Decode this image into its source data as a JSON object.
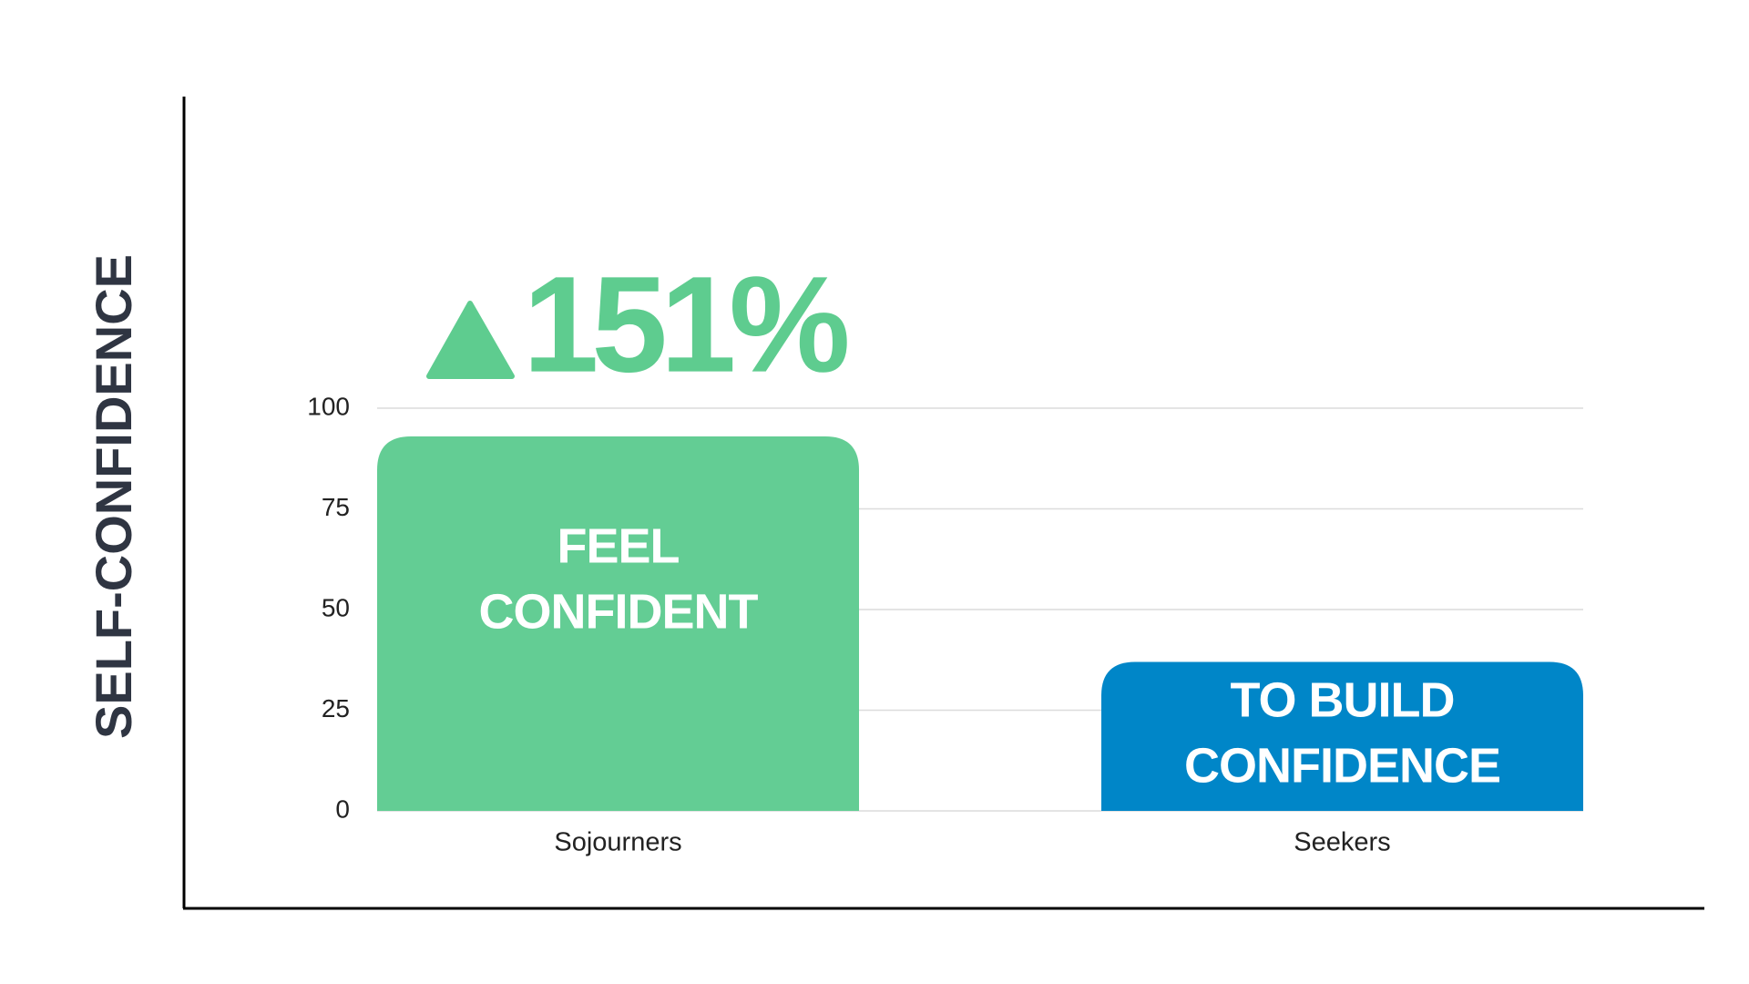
{
  "chart_data": {
    "type": "bar",
    "y_label": "SELF-CONFIDENCE",
    "categories": [
      "Sojourners",
      "Seekers"
    ],
    "values": [
      93,
      37
    ],
    "colors": [
      "#63cd94",
      "#0086c8"
    ],
    "bar_labels": [
      [
        "FEEL",
        "CONFIDENT"
      ],
      [
        "TO BUILD",
        "CONFIDENCE"
      ]
    ],
    "annotation": "151%",
    "annotation_color": "#5ecc8f",
    "ylim": [
      0,
      100
    ],
    "yticks": [
      0,
      25,
      50,
      75,
      100
    ],
    "grid": true
  }
}
